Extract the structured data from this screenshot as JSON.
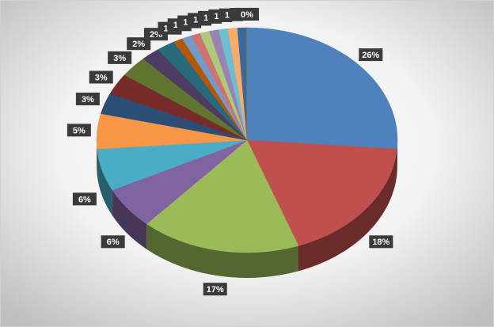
{
  "chart_data": {
    "type": "pie3d",
    "values": [
      26,
      18,
      17,
      6,
      6,
      5,
      3,
      3,
      3,
      2,
      2,
      1,
      1,
      1,
      1,
      1,
      1,
      1,
      1,
      0,
      0
    ],
    "value_labels": [
      "26%",
      "18%",
      "17%",
      "6%",
      "6%",
      "5%",
      "3%",
      "3%",
      "3%",
      "2%",
      "2%",
      "1%",
      "1%",
      "1%",
      "1%",
      "1%",
      "1%",
      "1%",
      "1%",
      "0%",
      "0%"
    ],
    "colors": [
      "#4f81bd",
      "#c0504d",
      "#9bbb59",
      "#8064a2",
      "#4bacc6",
      "#f79646",
      "#2c4d75",
      "#772c2a",
      "#5f7530",
      "#4d3b62",
      "#276a7c",
      "#b65708",
      "#729aca",
      "#cd7371",
      "#afc97a",
      "#9983b5",
      "#6fbdd1",
      "#f9ab6b",
      "#3a679c",
      "#9f3b38",
      "#7e9c40"
    ]
  }
}
